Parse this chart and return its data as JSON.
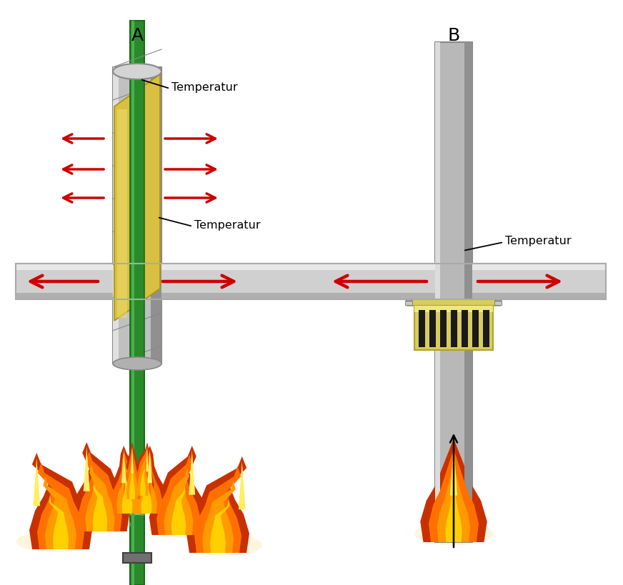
{
  "bg_color": "#ffffff",
  "label_A": "A",
  "label_B": "B",
  "text_temperatur": "Temperatur",
  "wall_color_main": "#d0d0d0",
  "wall_color_edge": "#aaaaaa",
  "wall_color_light": "#e8e8e8",
  "wall_color_dark": "#b0b0b0",
  "pipe_A_gray": "#c0c0c0",
  "pipe_A_light": "#e0e0e0",
  "pipe_A_dark": "#888888",
  "pipe_A_green": "#2a8a2a",
  "pipe_A_green_dark": "#1a6a1a",
  "insulation_yellow": "#d8c040",
  "insulation_light": "#f0e070",
  "pipe_B_gray": "#b8b8b8",
  "pipe_B_light": "#dcdcdc",
  "pipe_B_dark": "#909090",
  "collar_yellow": "#d8cc60",
  "collar_light": "#ede880",
  "collar_dark": "#b0a030",
  "collar_stripe": "#1a1a1a",
  "arrow_red": "#cc0000",
  "arrow_black": "#111111",
  "flame_dark": "#c83000",
  "flame_mid": "#e85000",
  "flame_orange": "#ff7000",
  "flame_light": "#ff9a00",
  "flame_yellow": "#ffd000",
  "flame_tip": "#ffee60"
}
